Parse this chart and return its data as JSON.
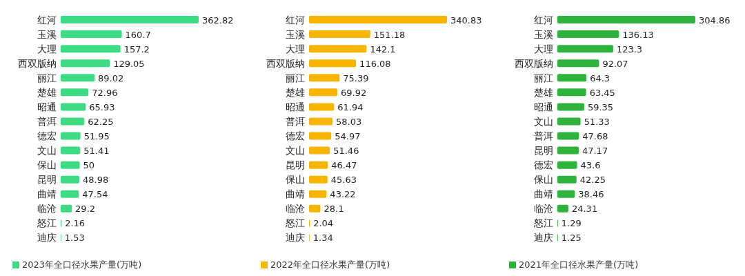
{
  "chart_data": [
    {
      "type": "bar",
      "orientation": "horizontal",
      "data_labels": true,
      "legend": "bottom left",
      "categories": [
        "红河",
        "玉溪",
        "大理",
        "西双版纳",
        "丽江",
        "楚雄",
        "昭通",
        "普洱",
        "德宏",
        "文山",
        "保山",
        "昆明",
        "曲靖",
        "临沧",
        "怒江",
        "迪庆"
      ],
      "series": [
        {
          "name": "2023年全口径水果产量(万吨)",
          "color": "#3ddc84",
          "values": [
            362.82,
            160.7,
            157.2,
            129.05,
            89.02,
            72.96,
            65.93,
            62.25,
            51.95,
            51.41,
            50,
            48.98,
            47.54,
            29.2,
            2.16,
            1.53
          ]
        }
      ]
    },
    {
      "type": "bar",
      "orientation": "horizontal",
      "data_labels": true,
      "legend": "bottom left",
      "categories": [
        "红河",
        "玉溪",
        "大理",
        "西双版纳",
        "丽江",
        "楚雄",
        "昭通",
        "普洱",
        "德宏",
        "文山",
        "昆明",
        "保山",
        "曲靖",
        "临沧",
        "怒江",
        "迪庆"
      ],
      "series": [
        {
          "name": "2022年全口径水果产量(万吨)",
          "color": "#f7b500",
          "values": [
            340.83,
            151.18,
            142.1,
            116.08,
            75.39,
            69.92,
            61.94,
            58.03,
            54.97,
            51.46,
            46.47,
            45.63,
            43.22,
            28.1,
            2.04,
            1.34
          ]
        }
      ]
    },
    {
      "type": "bar",
      "orientation": "horizontal",
      "data_labels": true,
      "legend": "bottom left",
      "categories": [
        "红河",
        "玉溪",
        "大理",
        "西双版纳",
        "丽江",
        "楚雄",
        "昭通",
        "文山",
        "普洱",
        "昆明",
        "德宏",
        "保山",
        "曲靖",
        "临沧",
        "怒江",
        "迪庆"
      ],
      "series": [
        {
          "name": "2021年全口径水果产量(万吨)",
          "color": "#2eb33c",
          "values": [
            304.86,
            136.13,
            123.3,
            92.07,
            64.3,
            63.45,
            59.35,
            51.33,
            47.68,
            47.17,
            43.6,
            42.25,
            38.46,
            24.31,
            1.29,
            1.25
          ]
        }
      ]
    }
  ]
}
